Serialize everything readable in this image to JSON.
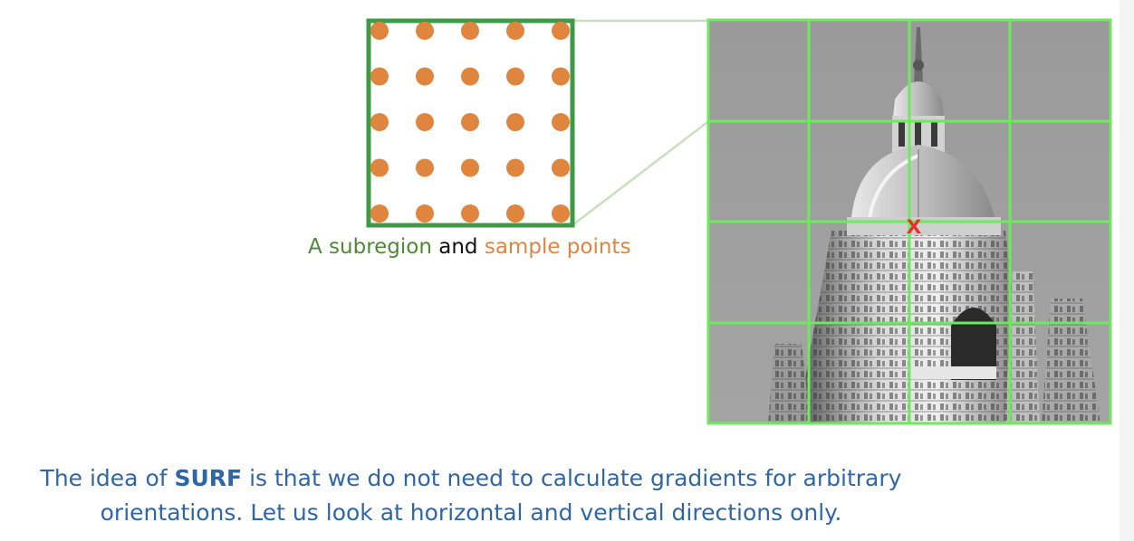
{
  "caption": {
    "part1": "A subregion",
    "part2": "and",
    "part3": "sample points"
  },
  "marker": {
    "symbol": "x"
  },
  "body": {
    "line1_prefix": "The idea of ",
    "line1_bold": "SURF",
    "line1_suffix": " is that we do not need to calculate gradients for arbitrary",
    "line2": "orientations. Let us look at horizontal and vertical directions only."
  },
  "colors": {
    "subregion_green": "#3f9a47",
    "sample_orange": "#e0853e",
    "grid_green": "#6ee85c",
    "marker_red": "#e8312a",
    "text_blue": "#2f66a8"
  },
  "subregion": {
    "sample_rows": 5,
    "sample_cols": 5
  },
  "image_grid": {
    "rows": 4,
    "cols": 4,
    "content": "grayscale photo of domed tower"
  }
}
